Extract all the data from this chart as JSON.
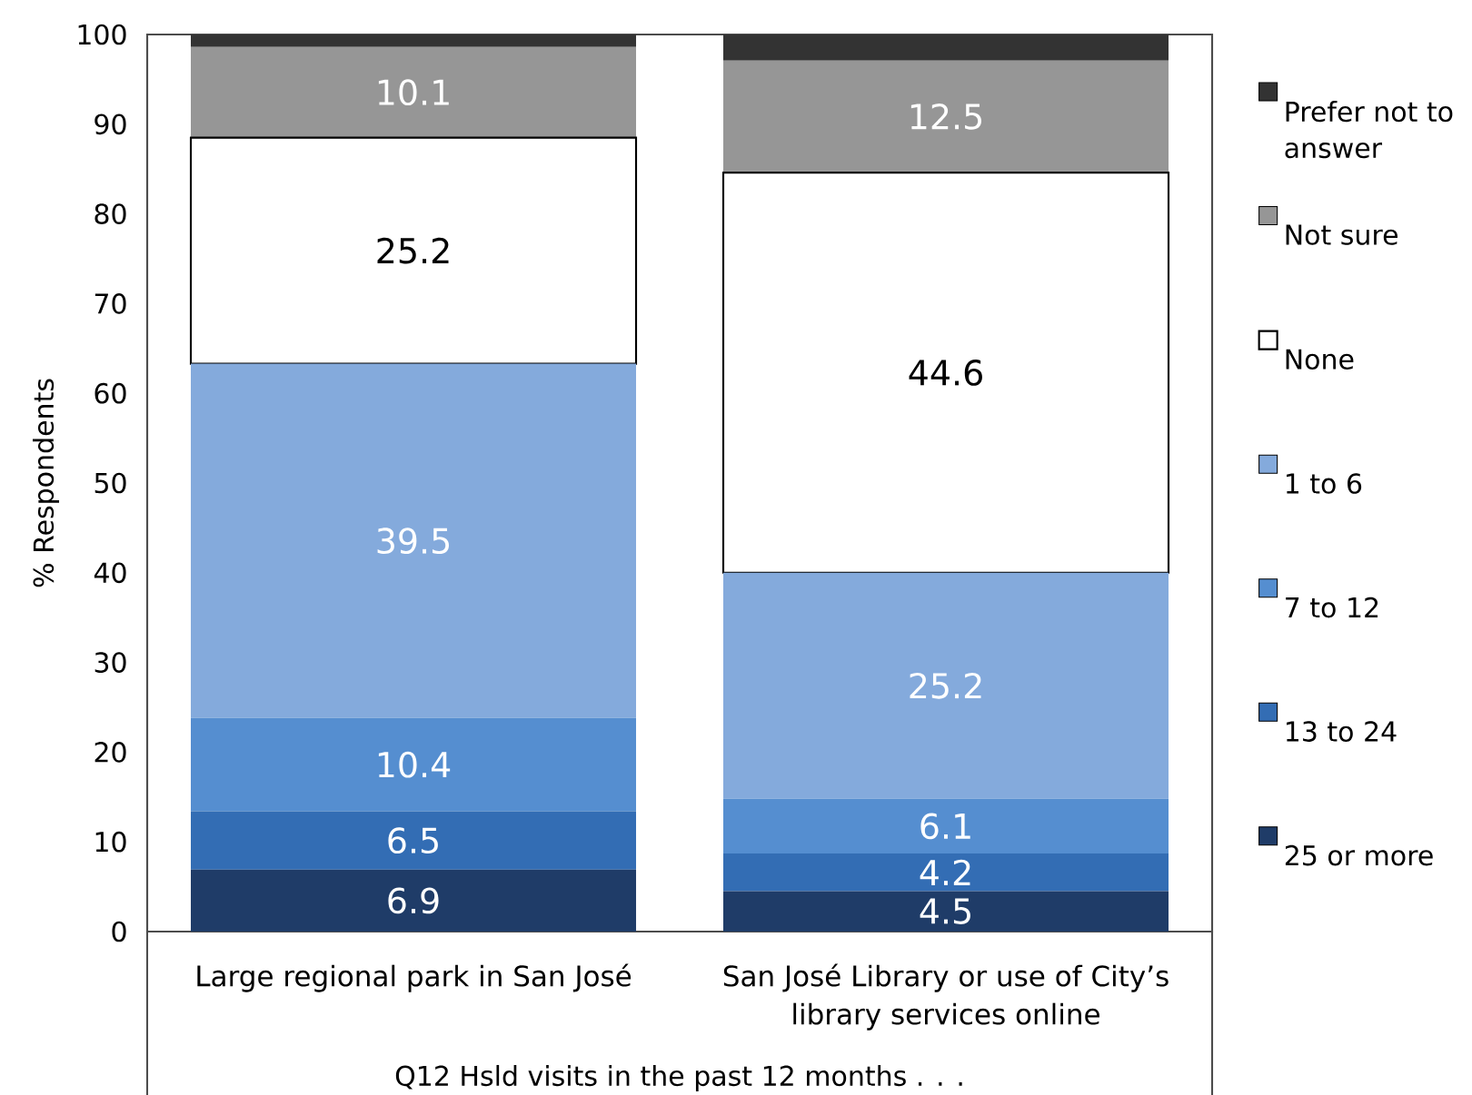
{
  "chart_data": {
    "type": "bar",
    "stacked": true,
    "categories": [
      "Large regional park in San José",
      "San José Library or use of City’s library services online"
    ],
    "xlabel": "Q12 Hsld visits in the past 12 months . . .",
    "ylabel": "% Respondents",
    "ylim": [
      0,
      100
    ],
    "yticks": [
      0,
      10,
      20,
      30,
      40,
      50,
      60,
      70,
      80,
      90,
      100
    ],
    "legend": "right",
    "series": [
      {
        "name": "25 or more",
        "color": "#1f3c68",
        "values": [
          6.9,
          4.5
        ],
        "value_labels": [
          "6.9",
          "4.5"
        ]
      },
      {
        "name": "13 to 24",
        "color": "#336db4",
        "values": [
          6.5,
          4.2
        ],
        "value_labels": [
          "6.5",
          "4.2"
        ]
      },
      {
        "name": "7 to 12",
        "color": "#558ed0",
        "values": [
          10.4,
          6.1
        ],
        "value_labels": [
          "10.4",
          "6.1"
        ]
      },
      {
        "name": "1 to 6",
        "color": "#84aadc",
        "values": [
          39.5,
          25.2
        ],
        "value_labels": [
          "39.5",
          "25.2"
        ]
      },
      {
        "name": "None",
        "color": "#ffffff",
        "values": [
          25.2,
          44.6
        ],
        "value_labels": [
          "25.2",
          "44.6"
        ]
      },
      {
        "name": "Not sure",
        "color": "#969696",
        "values": [
          10.1,
          12.5
        ],
        "value_labels": [
          "10.1",
          "12.5"
        ]
      },
      {
        "name": "Prefer not to answer",
        "color": "#333333",
        "values": [
          1.4,
          2.9
        ]
      }
    ]
  }
}
